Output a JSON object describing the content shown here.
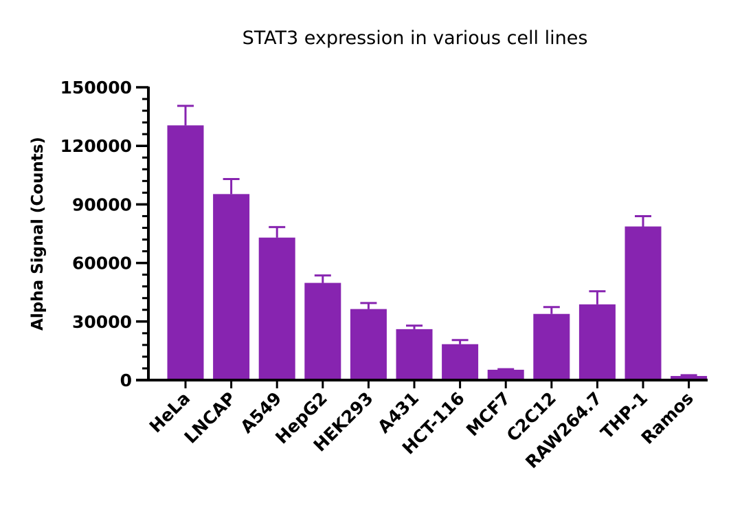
{
  "chart_data": {
    "type": "bar",
    "title": "STAT3 expression in various cell lines",
    "xlabel": "",
    "ylabel": "Alpha Signal (Counts)",
    "ylim": [
      0,
      150000
    ],
    "yticks": [
      0,
      30000,
      60000,
      90000,
      120000,
      150000
    ],
    "yticks_labels": [
      "0",
      "30000",
      "60000",
      "90000",
      "120000",
      "150000"
    ],
    "minor_tick_step": 6000,
    "grid": false,
    "categories": [
      "HeLa",
      "LNCAP",
      "A549",
      "HepG2",
      "HEK293",
      "A431",
      "HCT-116",
      "MCF7",
      "C2C12",
      "RAW264.7",
      "THP-1",
      "Ramos"
    ],
    "values": [
      130500,
      95300,
      73000,
      49800,
      36400,
      26100,
      18400,
      5300,
      33900,
      38800,
      78700,
      2100
    ],
    "error_upper": [
      140500,
      103000,
      78400,
      53600,
      39500,
      27900,
      20500,
      5600,
      37400,
      45500,
      84000,
      2500
    ],
    "bar_color": "#8724b0"
  }
}
